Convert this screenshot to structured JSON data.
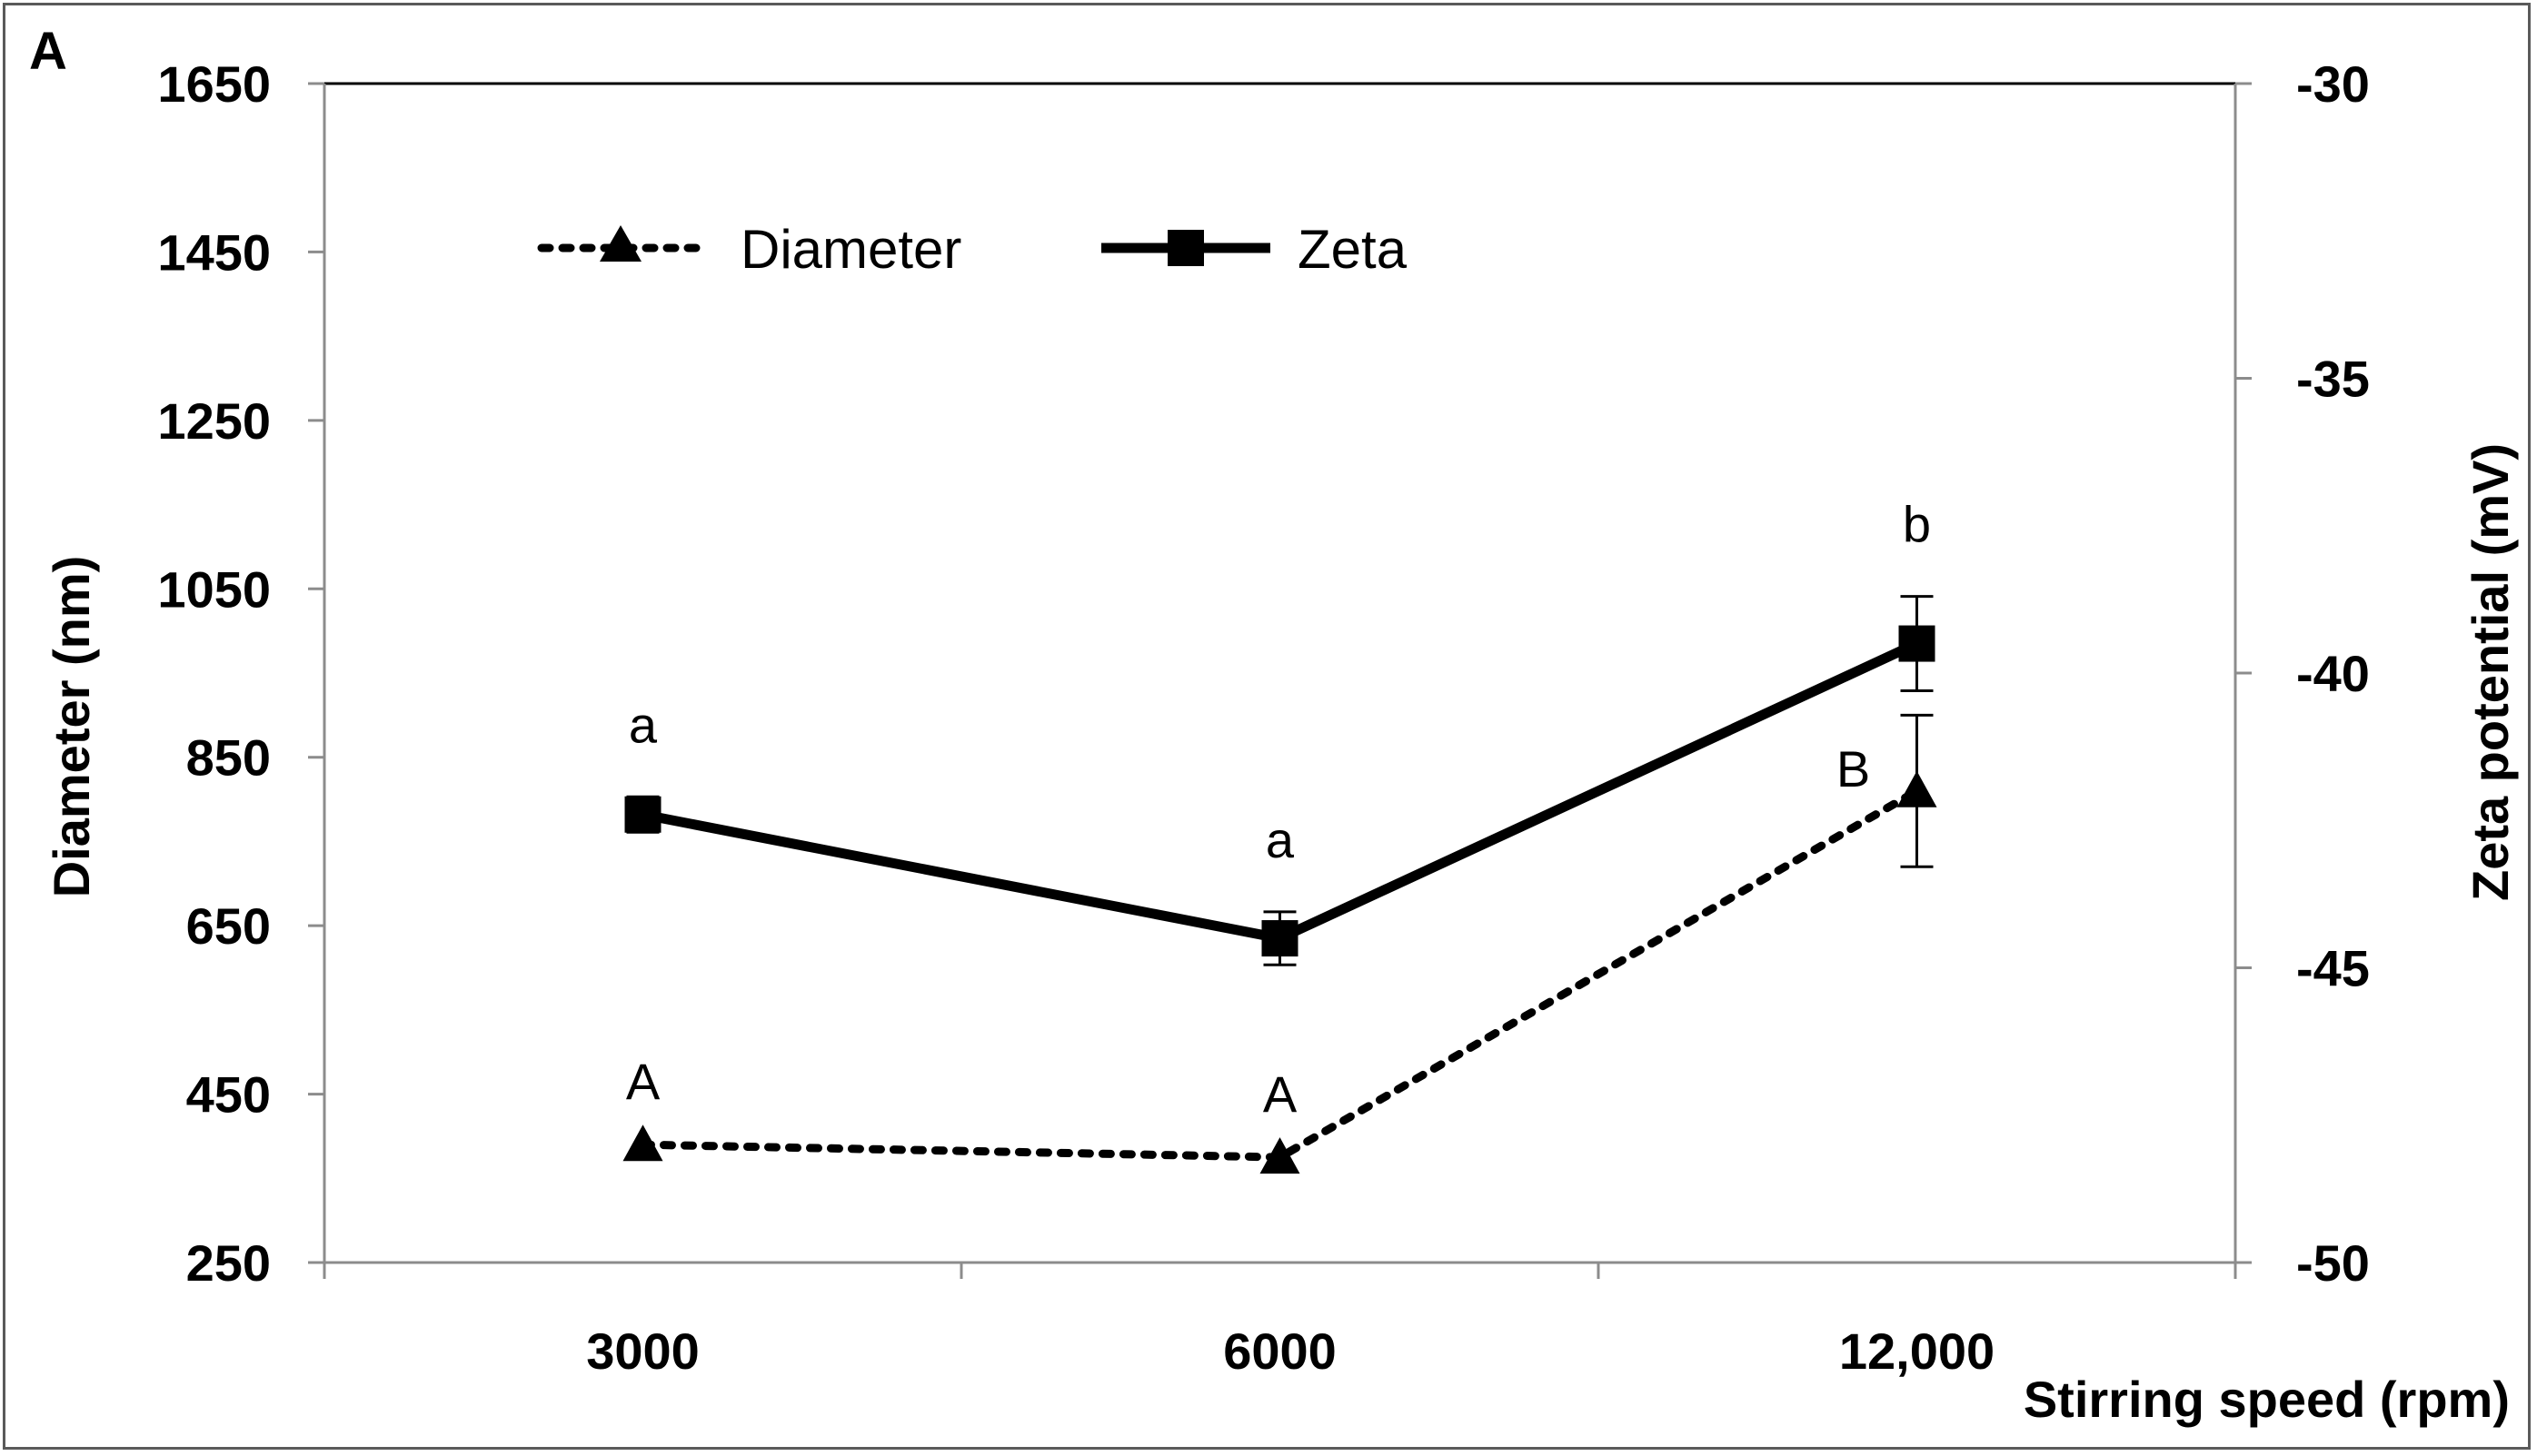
{
  "chart_data": {
    "type": "line",
    "panel_label": "A",
    "categories": [
      "3000",
      "6000",
      "12,000"
    ],
    "xlabel": "Stirring speed (rpm)",
    "ylabel": "Diameter (nm)",
    "y2label": "Zeta potential (mV)",
    "ylim": [
      250,
      1650
    ],
    "y2lim": [
      -50,
      -30
    ],
    "yticks": [
      "250",
      "450",
      "650",
      "850",
      "1050",
      "1250",
      "1450",
      "1650"
    ],
    "y2ticks": [
      "-50",
      "-45",
      "-40",
      "-35",
      "-30"
    ],
    "series": [
      {
        "name": "Diameter",
        "axis": "left",
        "style": "dotted",
        "marker": "triangle",
        "values": [
          390,
          375,
          810
        ],
        "errors": [
          0,
          0,
          90
        ],
        "letters": [
          "A",
          "A",
          "B"
        ]
      },
      {
        "name": "Zeta",
        "axis": "right",
        "style": "solid",
        "marker": "square",
        "values": [
          -42.4,
          -44.5,
          -39.5
        ],
        "errors": [
          0.3,
          0.45,
          0.8
        ],
        "letters": [
          "a",
          "a",
          "b"
        ]
      }
    ],
    "legend_position": "top-left",
    "colors": {
      "line": "#000000",
      "axis": "#8c8c8c",
      "frame": "#5a5a5a"
    }
  }
}
